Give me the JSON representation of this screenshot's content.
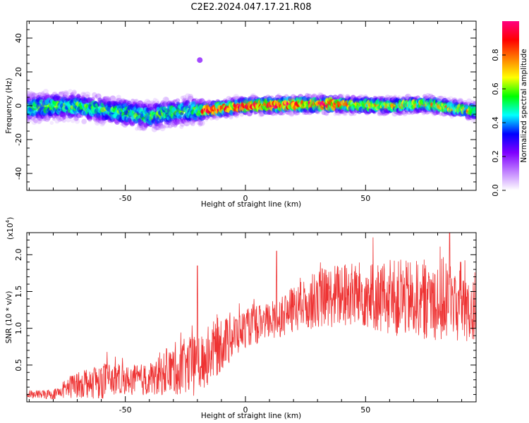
{
  "title": "C2E2.2024.047.17.21.R08",
  "chart_data": [
    {
      "type": "heatmap",
      "xlabel": "Height of straight line (km)",
      "ylabel": "Frequency (Hz)",
      "xlim": [
        -91,
        96
      ],
      "ylim": [
        -50,
        50
      ],
      "xticks": [
        -50,
        0,
        50
      ],
      "yticks": [
        -40,
        -20,
        0,
        20,
        40
      ],
      "colorbar": {
        "label": "Normalized spectral amplitude",
        "range": [
          0.0,
          1.0
        ],
        "ticks": [
          "0.0",
          "0.2",
          "0.4",
          "0.6",
          "0.8"
        ],
        "colormap": [
          "#ffffff",
          "#c080ff",
          "#7f00ff",
          "#0000ff",
          "#00ffff",
          "#00ff00",
          "#ffff00",
          "#ff8000",
          "#ff0000",
          "#ff0080"
        ]
      },
      "ridge_frequency_hz": [
        {
          "x": -90,
          "y": -1
        },
        {
          "x": -70,
          "y": 0
        },
        {
          "x": -50,
          "y": -4
        },
        {
          "x": -40,
          "y": -6
        },
        {
          "x": -25,
          "y": -3
        },
        {
          "x": -18,
          "y": -3
        },
        {
          "x": 0,
          "y": 0
        },
        {
          "x": 30,
          "y": 1
        },
        {
          "x": 60,
          "y": 0
        },
        {
          "x": 75,
          "y": 1
        },
        {
          "x": 95,
          "y": -3
        }
      ],
      "features": [
        {
          "x": -19,
          "y": 27,
          "amplitude": 0.2
        }
      ]
    },
    {
      "type": "line",
      "xlabel": "Height of straight line (km)",
      "ylabel": "SNR (10 * v/v)",
      "scale_label": "(x10",
      "scale_exp": "4",
      "scale_close": ")",
      "xlim": [
        -91,
        96
      ],
      "ylim": [
        0.0,
        2.3
      ],
      "xticks": [
        -50,
        0,
        50
      ],
      "yticks": [
        "0.5",
        "1.0",
        "1.5",
        "2.0"
      ],
      "line_color": "#ee3333",
      "trend": [
        {
          "x": -90,
          "base": 0.1,
          "amp": 0.08
        },
        {
          "x": -80,
          "base": 0.1,
          "amp": 0.1
        },
        {
          "x": -70,
          "base": 0.25,
          "amp": 0.3
        },
        {
          "x": -60,
          "base": 0.3,
          "amp": 0.4
        },
        {
          "x": -50,
          "base": 0.3,
          "amp": 0.3
        },
        {
          "x": -40,
          "base": 0.3,
          "amp": 0.35
        },
        {
          "x": -30,
          "base": 0.45,
          "amp": 0.55
        },
        {
          "x": -20,
          "base": 0.5,
          "amp": 0.65
        },
        {
          "x": -10,
          "base": 0.8,
          "amp": 0.6
        },
        {
          "x": 0,
          "base": 1.0,
          "amp": 0.4
        },
        {
          "x": 10,
          "base": 1.1,
          "amp": 0.4
        },
        {
          "x": 20,
          "base": 1.25,
          "amp": 0.5
        },
        {
          "x": 30,
          "base": 1.4,
          "amp": 0.6
        },
        {
          "x": 40,
          "base": 1.45,
          "amp": 0.7
        },
        {
          "x": 50,
          "base": 1.45,
          "amp": 0.7
        },
        {
          "x": 60,
          "base": 1.4,
          "amp": 0.8
        },
        {
          "x": 70,
          "base": 1.4,
          "amp": 0.8
        },
        {
          "x": 80,
          "base": 1.4,
          "amp": 0.9
        },
        {
          "x": 90,
          "base": 1.35,
          "amp": 0.9
        },
        {
          "x": 96,
          "base": 1.3,
          "amp": 0.9
        }
      ],
      "spikes": [
        {
          "x": -20,
          "y": 1.85
        },
        {
          "x": 13,
          "y": 2.05
        },
        {
          "x": 85,
          "y": 2.35
        }
      ]
    }
  ]
}
